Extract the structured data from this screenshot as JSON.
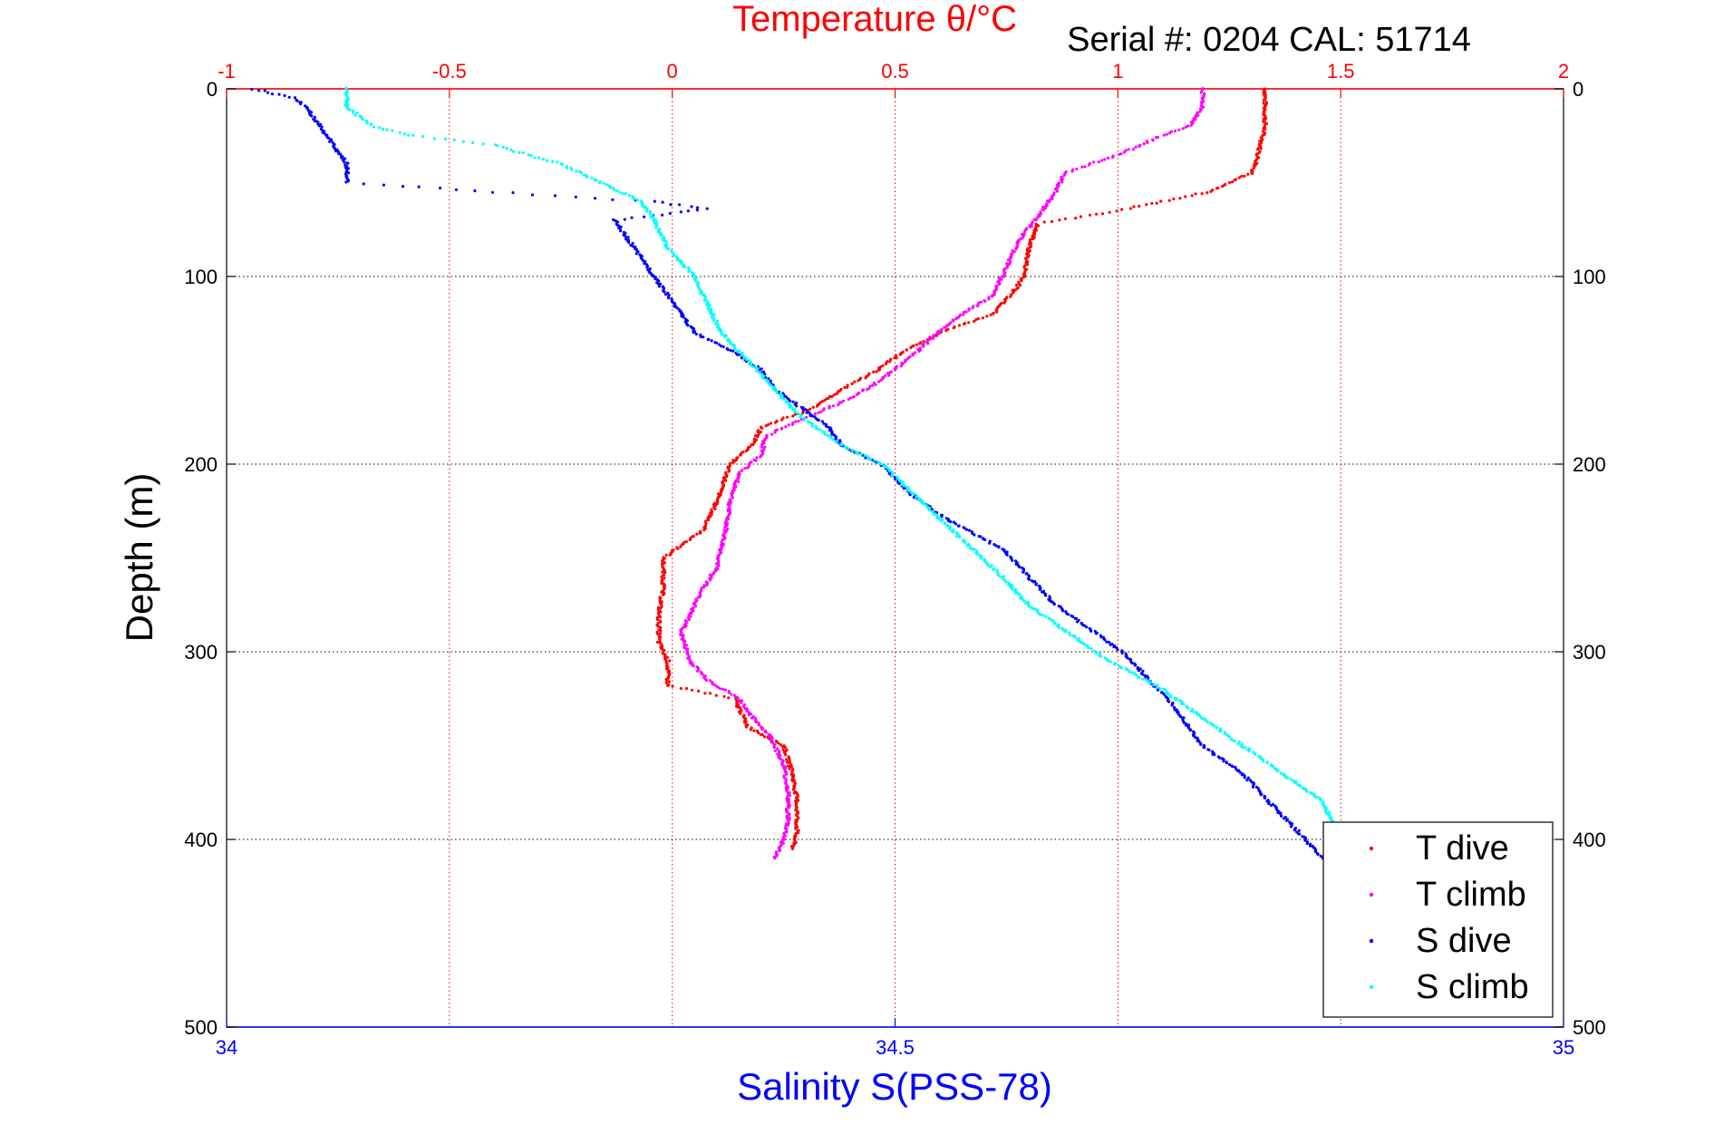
{
  "chart_data": {
    "type": "scatter",
    "title": "Serial #: 0204  CAL: 51714",
    "top_axis": {
      "label": "Temperature θ/°C",
      "ticks": [
        "-1",
        "-0.5",
        "0",
        "0.5",
        "1",
        "1.5",
        "2"
      ],
      "range": [
        -1,
        2
      ],
      "color": "#ff0000"
    },
    "bottom_axis": {
      "label": "Salinity S(PSS-78)",
      "ticks": [
        "34",
        "34.5",
        "35"
      ],
      "range": [
        34,
        35
      ],
      "color": "#0000ff"
    },
    "y_axis": {
      "label": "Depth (m)",
      "ticks": [
        "0",
        "100",
        "200",
        "300",
        "400",
        "500"
      ],
      "range": [
        0,
        500
      ],
      "reversed": true
    },
    "grid": true,
    "legend_position": "bottom-right",
    "series": [
      {
        "name": "T dive",
        "axis": "temperature",
        "color": "#ff0000",
        "points": [
          [
            1.33,
            0
          ],
          [
            1.33,
            10
          ],
          [
            1.33,
            20
          ],
          [
            1.32,
            30
          ],
          [
            1.31,
            40
          ],
          [
            1.3,
            45
          ],
          [
            1.2,
            55
          ],
          [
            1.0,
            65
          ],
          [
            0.82,
            72
          ],
          [
            0.8,
            85
          ],
          [
            0.79,
            100
          ],
          [
            0.76,
            110
          ],
          [
            0.72,
            120
          ],
          [
            0.6,
            130
          ],
          [
            0.52,
            140
          ],
          [
            0.46,
            150
          ],
          [
            0.38,
            160
          ],
          [
            0.32,
            170
          ],
          [
            0.2,
            180
          ],
          [
            0.18,
            190
          ],
          [
            0.13,
            200
          ],
          [
            0.1,
            220
          ],
          [
            0.07,
            235
          ],
          [
            -0.02,
            250
          ],
          [
            -0.02,
            265
          ],
          [
            -0.03,
            280
          ],
          [
            -0.03,
            295
          ],
          [
            -0.01,
            305
          ],
          [
            -0.01,
            318
          ],
          [
            0.14,
            325
          ],
          [
            0.17,
            340
          ],
          [
            0.25,
            350
          ],
          [
            0.27,
            365
          ],
          [
            0.28,
            380
          ],
          [
            0.28,
            395
          ],
          [
            0.27,
            405
          ]
        ]
      },
      {
        "name": "T climb",
        "axis": "temperature",
        "color": "#ff00ff",
        "points": [
          [
            1.19,
            0
          ],
          [
            1.19,
            10
          ],
          [
            1.16,
            20
          ],
          [
            1.1,
            25
          ],
          [
            1.0,
            35
          ],
          [
            0.88,
            45
          ],
          [
            0.86,
            55
          ],
          [
            0.83,
            65
          ],
          [
            0.78,
            80
          ],
          [
            0.75,
            95
          ],
          [
            0.72,
            110
          ],
          [
            0.62,
            125
          ],
          [
            0.55,
            140
          ],
          [
            0.47,
            155
          ],
          [
            0.4,
            165
          ],
          [
            0.3,
            175
          ],
          [
            0.21,
            185
          ],
          [
            0.2,
            195
          ],
          [
            0.15,
            205
          ],
          [
            0.13,
            220
          ],
          [
            0.12,
            235
          ],
          [
            0.1,
            255
          ],
          [
            0.06,
            270
          ],
          [
            0.04,
            280
          ],
          [
            0.02,
            290
          ],
          [
            0.04,
            305
          ],
          [
            0.08,
            315
          ],
          [
            0.15,
            325
          ],
          [
            0.18,
            335
          ],
          [
            0.22,
            345
          ],
          [
            0.25,
            360
          ],
          [
            0.26,
            375
          ],
          [
            0.26,
            390
          ],
          [
            0.25,
            400
          ],
          [
            0.23,
            410
          ]
        ]
      },
      {
        "name": "S dive",
        "axis": "salinity",
        "color": "#0000ff",
        "points": [
          [
            34.02,
            0
          ],
          [
            34.05,
            5
          ],
          [
            34.06,
            10
          ],
          [
            34.07,
            20
          ],
          [
            34.08,
            30
          ],
          [
            34.09,
            40
          ],
          [
            34.09,
            50
          ],
          [
            34.2,
            55
          ],
          [
            34.32,
            60
          ],
          [
            34.36,
            64
          ],
          [
            34.29,
            70
          ],
          [
            34.3,
            80
          ],
          [
            34.31,
            90
          ],
          [
            34.32,
            100
          ],
          [
            34.33,
            110
          ],
          [
            34.34,
            120
          ],
          [
            34.35,
            130
          ],
          [
            34.38,
            140
          ],
          [
            34.4,
            150
          ],
          [
            34.41,
            160
          ],
          [
            34.43,
            170
          ],
          [
            34.45,
            180
          ],
          [
            34.46,
            190
          ],
          [
            34.49,
            200
          ],
          [
            34.51,
            215
          ],
          [
            34.54,
            230
          ],
          [
            34.58,
            245
          ],
          [
            34.6,
            260
          ],
          [
            34.62,
            275
          ],
          [
            34.65,
            290
          ],
          [
            34.67,
            300
          ],
          [
            34.69,
            315
          ],
          [
            34.71,
            330
          ],
          [
            34.73,
            350
          ],
          [
            34.76,
            365
          ],
          [
            34.78,
            380
          ],
          [
            34.8,
            395
          ],
          [
            34.82,
            410
          ]
        ]
      },
      {
        "name": "S climb",
        "axis": "salinity",
        "color": "#00ffff",
        "points": [
          [
            34.09,
            0
          ],
          [
            34.09,
            10
          ],
          [
            34.11,
            20
          ],
          [
            34.14,
            25
          ],
          [
            34.2,
            30
          ],
          [
            34.25,
            40
          ],
          [
            34.28,
            50
          ],
          [
            34.31,
            60
          ],
          [
            34.32,
            70
          ],
          [
            34.33,
            85
          ],
          [
            34.35,
            100
          ],
          [
            34.36,
            115
          ],
          [
            34.37,
            130
          ],
          [
            34.39,
            145
          ],
          [
            34.41,
            160
          ],
          [
            34.43,
            175
          ],
          [
            34.46,
            190
          ],
          [
            34.49,
            200
          ],
          [
            34.52,
            220
          ],
          [
            34.55,
            240
          ],
          [
            34.58,
            260
          ],
          [
            34.6,
            275
          ],
          [
            34.63,
            290
          ],
          [
            34.66,
            305
          ],
          [
            34.7,
            320
          ],
          [
            34.73,
            335
          ],
          [
            34.76,
            350
          ],
          [
            34.79,
            365
          ],
          [
            34.82,
            380
          ],
          [
            34.83,
            395
          ],
          [
            34.84,
            410
          ]
        ]
      }
    ]
  }
}
